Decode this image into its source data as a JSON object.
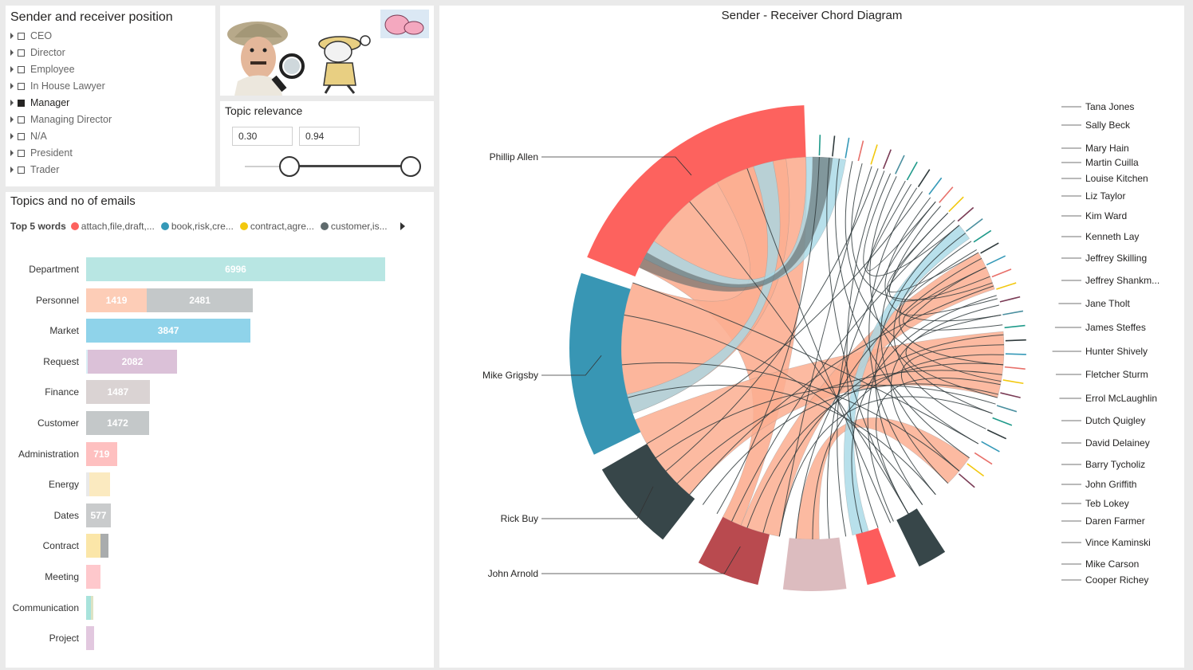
{
  "position_slicer": {
    "title": "Sender and receiver position",
    "items": [
      {
        "label": "CEO",
        "selected": false
      },
      {
        "label": "Director",
        "selected": false
      },
      {
        "label": "Employee",
        "selected": false
      },
      {
        "label": "In House Lawyer",
        "selected": false
      },
      {
        "label": "Manager",
        "selected": true
      },
      {
        "label": "Managing Director",
        "selected": false
      },
      {
        "label": "N/A",
        "selected": false
      },
      {
        "label": "President",
        "selected": false
      },
      {
        "label": "Trader",
        "selected": false
      }
    ]
  },
  "topic_relevance": {
    "title": "Topic relevance",
    "min": "0.30",
    "max": "0.94"
  },
  "topics_chart": {
    "title": "Topics and no of emails",
    "legend_title": "Top 5 words",
    "legend": [
      {
        "label": "attach,file,draft,...",
        "color": "#fd625e"
      },
      {
        "label": "book,risk,cre...",
        "color": "#3599b8"
      },
      {
        "label": "contract,agre...",
        "color": "#f2c80f"
      },
      {
        "label": "customer,is...",
        "color": "#5f6b6d"
      }
    ]
  },
  "chart_data": {
    "type": "bar",
    "orientation": "horizontal",
    "stacked": true,
    "title": "Topics and no of emails",
    "categories": [
      "Department",
      "Personnel",
      "Market",
      "Request",
      "Finance",
      "Customer",
      "Administration",
      "Energy",
      "Dates",
      "Contract",
      "Meeting",
      "Communication",
      "Project"
    ],
    "rows": [
      {
        "category": "Department",
        "segments": [
          {
            "value": 6996,
            "label": "6996",
            "color": "#b8e6e3"
          }
        ]
      },
      {
        "category": "Personnel",
        "segments": [
          {
            "value": 1419,
            "label": "1419",
            "color": "#fdcdb7"
          },
          {
            "value": 2481,
            "label": "2481",
            "color": "#c4c8c9"
          }
        ]
      },
      {
        "category": "Market",
        "segments": [
          {
            "value": 3847,
            "label": "3847",
            "color": "#8fd3ea"
          }
        ]
      },
      {
        "category": "Request",
        "segments": [
          {
            "value": 40,
            "label": "",
            "color": "#dbeef6"
          },
          {
            "value": 2082,
            "label": "2082",
            "color": "#dbc1d8"
          }
        ]
      },
      {
        "category": "Finance",
        "segments": [
          {
            "value": 1487,
            "label": "1487",
            "color": "#dad3d3"
          }
        ]
      },
      {
        "category": "Customer",
        "segments": [
          {
            "value": 1472,
            "label": "1472",
            "color": "#c4c8c9"
          }
        ]
      },
      {
        "category": "Administration",
        "segments": [
          {
            "value": 719,
            "label": "719",
            "color": "#fec0c0"
          }
        ]
      },
      {
        "category": "Energy",
        "segments": [
          {
            "value": 80,
            "label": "",
            "color": "#e9e9e9"
          },
          {
            "value": 480,
            "label": "",
            "color": "#fbeac0"
          }
        ]
      },
      {
        "category": "Dates",
        "segments": [
          {
            "value": 577,
            "label": "577",
            "color": "#c9cbcc"
          }
        ]
      },
      {
        "category": "Contract",
        "segments": [
          {
            "value": 330,
            "label": "",
            "color": "#fbe6a8"
          },
          {
            "value": 190,
            "label": "",
            "color": "#a9acad"
          }
        ]
      },
      {
        "category": "Meeting",
        "segments": [
          {
            "value": 330,
            "label": "",
            "color": "#fec8cc"
          }
        ]
      },
      {
        "category": "Communication",
        "segments": [
          {
            "value": 120,
            "label": "",
            "color": "#a8e3dc"
          },
          {
            "value": 40,
            "label": "",
            "color": "#dde3c4"
          }
        ]
      },
      {
        "category": "Project",
        "segments": [
          {
            "value": 180,
            "label": "",
            "color": "#e2c8df"
          }
        ]
      }
    ]
  },
  "chord": {
    "title": "Sender - Receiver Chord Diagram",
    "left_nodes": [
      {
        "name": "Phillip Allen",
        "color": "#fd625e"
      },
      {
        "name": "Mike Grigsby",
        "color": "#3896b4"
      },
      {
        "name": "Rick Buy",
        "color": "#374649"
      },
      {
        "name": "John Arnold",
        "color": "#b94a4f"
      }
    ],
    "bottom_nodes": [
      {
        "color": "#dcbcbf"
      },
      {
        "color": "#fd5c5c"
      },
      {
        "color": "#374649"
      }
    ],
    "right_labels": [
      "Tana Jones",
      "Sally Beck",
      "Mary Hain",
      "Martin Cuilla",
      "Louise Kitchen",
      "Liz Taylor",
      "Kim Ward",
      "Kenneth Lay",
      "Jeffrey Skilling",
      "Jeffrey Shankm...",
      "Jane Tholt",
      "James Steffes",
      "Hunter Shively",
      "Fletcher Sturm",
      "Errol McLaughlin",
      "Dutch Quigley",
      "David Delainey",
      "Barry Tycholiz",
      "John Griffith",
      "Teb Lokey",
      "Daren Farmer",
      "Vince Kaminski",
      "Mike Carson",
      "Cooper Richey"
    ],
    "colors": {
      "ribbon": "#fcae91",
      "ribbon_blue": "#a6d8e6",
      "ribbon_dark": "#5c6668"
    }
  }
}
